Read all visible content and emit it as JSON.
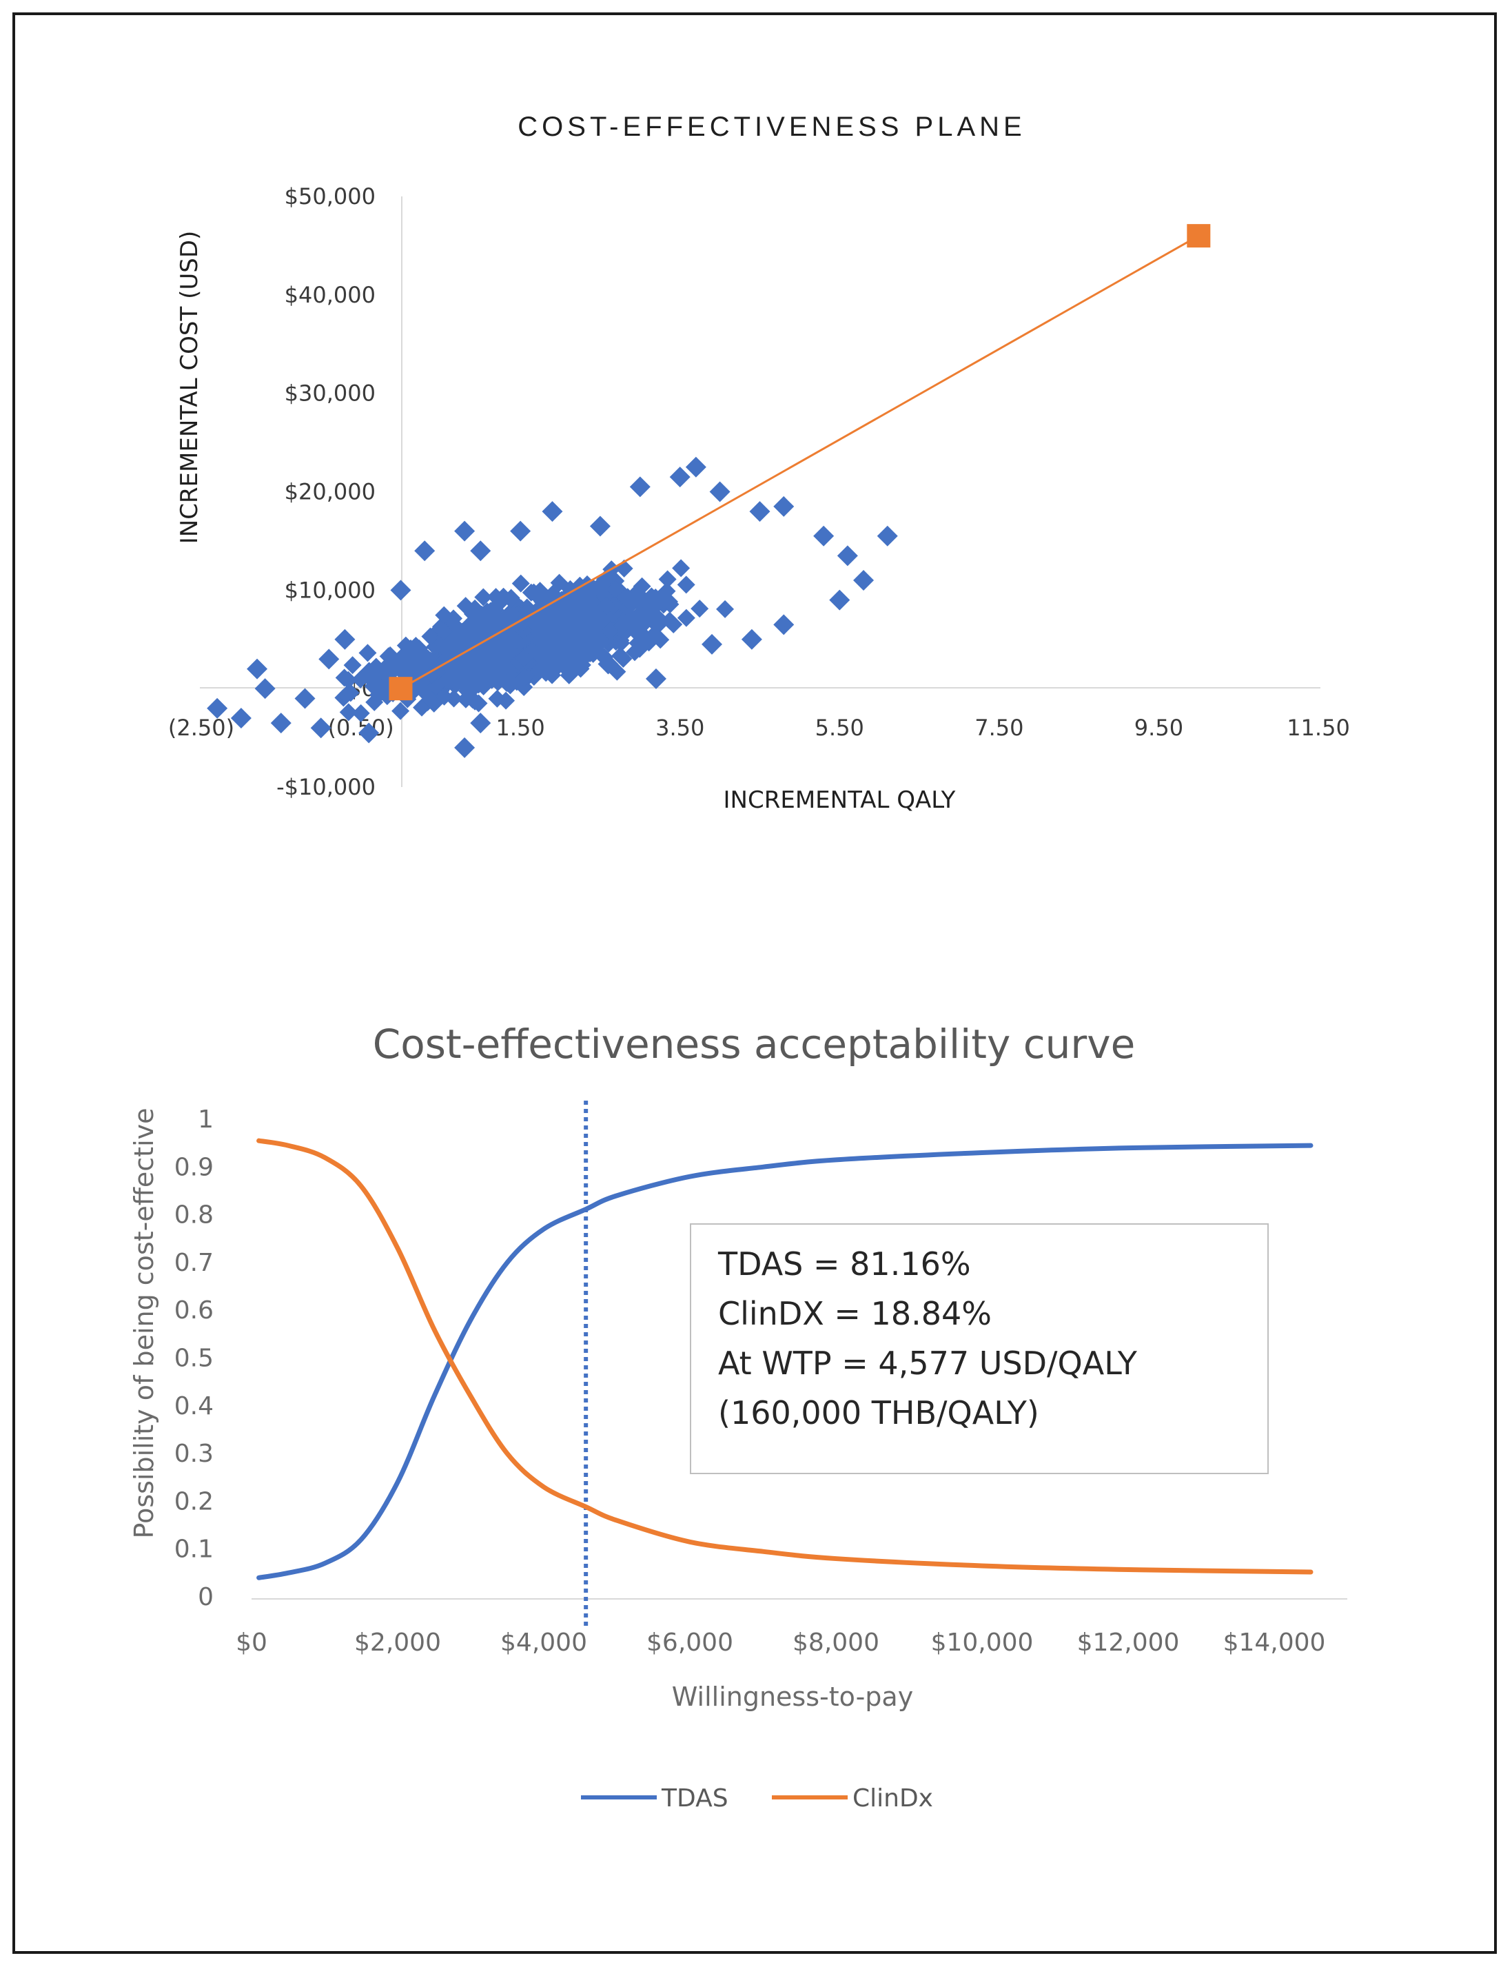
{
  "chart_data": [
    {
      "type": "scatter",
      "title": "COST-EFFECTIVENESS PLANE",
      "xlabel": "INCREMENTAL QALY",
      "ylabel": "INCREMENTAL COST (USD)",
      "xlim": [
        -2.5,
        11.5
      ],
      "ylim": [
        -10000,
        50000
      ],
      "x_ticks": [
        -2.5,
        -0.5,
        1.5,
        3.5,
        5.5,
        7.5,
        9.5,
        11.5
      ],
      "x_tick_labels": [
        "(2.50)",
        "(0.50)",
        "1.50",
        "3.50",
        "5.50",
        "7.50",
        "9.50",
        "11.50"
      ],
      "y_ticks": [
        -10000,
        0,
        10000,
        20000,
        30000,
        40000,
        50000
      ],
      "y_tick_labels": [
        "-$10,000",
        "$0",
        "$10,000",
        "$20,000",
        "$30,000",
        "$40,000",
        "$50,000"
      ],
      "grid": false,
      "colors": {
        "simulations": "#4472C4",
        "threshold": "#ED7D31"
      },
      "series": [
        {
          "marker": "diamond",
          "points": [
            [
              -2.3,
              -2000
            ],
            [
              -2.0,
              -3000
            ],
            [
              -1.8,
              2000
            ],
            [
              -1.7,
              0
            ],
            [
              -1.5,
              -3500
            ],
            [
              -1.2,
              -1000
            ],
            [
              -1.0,
              -4000
            ],
            [
              -0.9,
              3000
            ],
            [
              -0.7,
              5000
            ],
            [
              -0.4,
              -4500
            ],
            [
              0.0,
              10000
            ],
            [
              0.3,
              14000
            ],
            [
              0.8,
              16000
            ],
            [
              1.0,
              14000
            ],
            [
              1.5,
              16000
            ],
            [
              1.9,
              18000
            ],
            [
              0.8,
              -6000
            ],
            [
              1.0,
              -3500
            ],
            [
              2.5,
              16500
            ],
            [
              3.0,
              20500
            ],
            [
              3.5,
              21500
            ],
            [
              3.7,
              22500
            ],
            [
              4.0,
              20000
            ],
            [
              4.5,
              18000
            ],
            [
              4.8,
              18500
            ],
            [
              5.3,
              15500
            ],
            [
              5.6,
              13500
            ],
            [
              5.8,
              11000
            ],
            [
              6.1,
              15500
            ],
            [
              5.5,
              9000
            ],
            [
              4.8,
              6500
            ],
            [
              4.4,
              5000
            ],
            [
              3.9,
              4500
            ],
            [
              3.2,
              1000
            ],
            [
              2.6,
              2500
            ]
          ]
        },
        {
          "name": "",
          "marker": "square",
          "line": true,
          "points": [
            [
              0.0,
              0
            ],
            [
              10.0,
              46000
            ]
          ]
        }
      ]
    },
    {
      "type": "line",
      "title": "Cost-effectiveness acceptability curve",
      "xlabel": "Willingness-to-pay",
      "ylabel": "Possibility of being cost-effective",
      "xlim": [
        0,
        15000
      ],
      "ylim": [
        0,
        1
      ],
      "x_ticks": [
        0,
        2000,
        4000,
        6000,
        8000,
        10000,
        12000,
        14000
      ],
      "x_tick_labels": [
        "$0",
        "$2,000",
        "$4,000",
        "$6,000",
        "$8,000",
        "$10,000",
        "$12,000",
        "$14,000"
      ],
      "y_ticks": [
        0,
        0.1,
        0.2,
        0.3,
        0.4,
        0.5,
        0.6,
        0.7,
        0.8,
        0.9,
        1
      ],
      "y_tick_labels": [
        "0",
        "0.1",
        "0.2",
        "0.3",
        "0.4",
        "0.5",
        "0.6",
        "0.7",
        "0.8",
        "0.9",
        "1"
      ],
      "grid": false,
      "legend": "bottom",
      "x": [
        100,
        500,
        1000,
        1500,
        2000,
        2500,
        3000,
        3500,
        4000,
        4577,
        5000,
        6000,
        7000,
        8000,
        10000,
        12000,
        14500
      ],
      "series": [
        {
          "name": "TDAS",
          "color": "#4472C4",
          "values": [
            0.04,
            0.05,
            0.07,
            0.12,
            0.24,
            0.42,
            0.58,
            0.7,
            0.77,
            0.8116,
            0.84,
            0.88,
            0.9,
            0.915,
            0.93,
            0.94,
            0.945
          ]
        },
        {
          "name": "ClinDx",
          "color": "#ED7D31",
          "values": [
            0.955,
            0.945,
            0.92,
            0.86,
            0.73,
            0.56,
            0.42,
            0.3,
            0.23,
            0.1884,
            0.16,
            0.115,
            0.095,
            0.08,
            0.065,
            0.057,
            0.052
          ]
        }
      ],
      "reference_line": {
        "x": 4577,
        "style": "dotted",
        "color": "#4472C4"
      },
      "annotation": [
        "TDAS = 81.16%",
        "ClinDX = 18.84%",
        "At WTP = 4,577 USD/QALY",
        "(160,000 THB/QALY)"
      ]
    }
  ]
}
